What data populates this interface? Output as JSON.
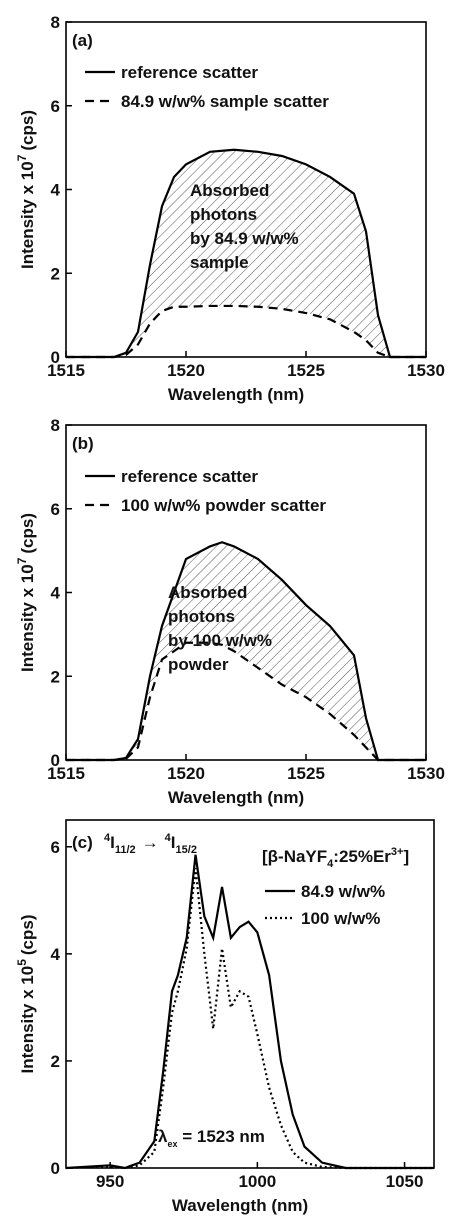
{
  "chart_data": [
    {
      "type": "line",
      "panel_label": "(a)",
      "xlabel": "Wavelength (nm)",
      "ylabel": {
        "text": "Intensity x 10",
        "exp": "7",
        "unit": "(cps)"
      },
      "xlim": [
        1515,
        1530
      ],
      "ylim": [
        0,
        8
      ],
      "xticks": [
        1515,
        1520,
        1525,
        1530
      ],
      "yticks": [
        0,
        2,
        4,
        6,
        8
      ],
      "x": [
        1515,
        1517,
        1517.5,
        1518,
        1518.5,
        1519,
        1519.5,
        1520,
        1521,
        1522,
        1523,
        1524,
        1525,
        1526,
        1527,
        1527.5,
        1528,
        1528.5,
        1530
      ],
      "series": [
        {
          "name": "reference scatter",
          "color": "#000000",
          "dash": "solid",
          "values": [
            0,
            0,
            0.1,
            0.6,
            2.2,
            3.6,
            4.3,
            4.6,
            4.9,
            4.95,
            4.9,
            4.8,
            4.6,
            4.3,
            3.9,
            3.0,
            1.0,
            0,
            0
          ]
        },
        {
          "name": "84.9 w/w% sample scatter",
          "color": "#000000",
          "dash": "dashed",
          "values": [
            0,
            0,
            0.05,
            0.3,
            0.8,
            1.1,
            1.2,
            1.2,
            1.22,
            1.22,
            1.2,
            1.15,
            1.05,
            0.9,
            0.6,
            0.4,
            0.1,
            0,
            0
          ]
        }
      ],
      "hatch_between": true,
      "annotation": [
        "Absorbed",
        "photons",
        "by 84.9 w/w%",
        "sample"
      ]
    },
    {
      "type": "line",
      "panel_label": "(b)",
      "xlabel": "Wavelength (nm)",
      "ylabel": {
        "text": "Intensity x 10",
        "exp": "7",
        "unit": "(cps)"
      },
      "xlim": [
        1515,
        1530
      ],
      "ylim": [
        0,
        8
      ],
      "xticks": [
        1515,
        1520,
        1525,
        1530
      ],
      "yticks": [
        0,
        2,
        4,
        6,
        8
      ],
      "x": [
        1515,
        1517,
        1517.5,
        1518,
        1518.5,
        1519,
        1519.5,
        1520,
        1521,
        1521.5,
        1522,
        1523,
        1524,
        1525,
        1526,
        1527,
        1527.5,
        1528,
        1530
      ],
      "series": [
        {
          "name": "reference scatter",
          "color": "#000000",
          "dash": "solid",
          "values": [
            0,
            0,
            0.05,
            0.5,
            2.0,
            3.2,
            4.0,
            4.8,
            5.1,
            5.2,
            5.1,
            4.8,
            4.3,
            3.7,
            3.2,
            2.5,
            1.0,
            0,
            0
          ]
        },
        {
          "name": "100 w/w% powder scatter",
          "color": "#000000",
          "dash": "dashed",
          "values": [
            0,
            0,
            0.03,
            0.3,
            1.5,
            2.4,
            2.6,
            2.8,
            2.8,
            2.75,
            2.6,
            2.2,
            1.8,
            1.5,
            1.1,
            0.6,
            0.3,
            0,
            0
          ]
        }
      ],
      "hatch_between": true,
      "annotation": [
        "Absorbed",
        "photons",
        "by 100 w/w%",
        "powder"
      ]
    },
    {
      "type": "line",
      "panel_label": "(c)",
      "transition": {
        "sup1": "4",
        "base1": "I",
        "sub1": "11/2",
        "arrow": "→",
        "sup2": "4",
        "base2": "I",
        "sub2": "15/2"
      },
      "legend_title": [
        "[β-NaYF",
        "4",
        ":25%Er",
        "3+",
        "]"
      ],
      "xlabel": "Wavelength (nm)",
      "ylabel": {
        "text": "Intensity x 10",
        "exp": "5",
        "unit": "(cps)"
      },
      "xlim": [
        935,
        1060
      ],
      "ylim": [
        0,
        6.5
      ],
      "xticks": [
        950,
        1000,
        1050
      ],
      "yticks": [
        0,
        2,
        4,
        6
      ],
      "x": [
        935,
        950,
        955,
        960,
        965,
        968,
        971,
        973,
        976,
        979,
        982,
        985,
        988,
        991,
        994,
        997,
        1000,
        1004,
        1008,
        1012,
        1016,
        1022,
        1030,
        1060
      ],
      "series": [
        {
          "name": "84.9 w/w%",
          "color": "#000000",
          "dash": "solid",
          "values": [
            0,
            0.05,
            0,
            0.1,
            0.5,
            1.8,
            3.3,
            3.6,
            4.3,
            5.85,
            4.7,
            4.3,
            5.25,
            4.3,
            4.5,
            4.6,
            4.4,
            3.6,
            2.0,
            1.0,
            0.4,
            0.1,
            0,
            0
          ]
        },
        {
          "name": "100 w/w%",
          "color": "#000000",
          "dash": "dotted",
          "values": [
            0,
            0.03,
            0,
            0.05,
            0.3,
            1.5,
            2.9,
            3.3,
            4.1,
            5.6,
            4.0,
            2.6,
            4.1,
            3.0,
            3.3,
            3.2,
            2.5,
            1.5,
            0.8,
            0.3,
            0.1,
            0.02,
            0,
            0
          ]
        }
      ],
      "hatch_between": false,
      "excitation": {
        "symbol": "λ",
        "sub": "ex",
        "text": " = 1523 nm"
      }
    }
  ]
}
